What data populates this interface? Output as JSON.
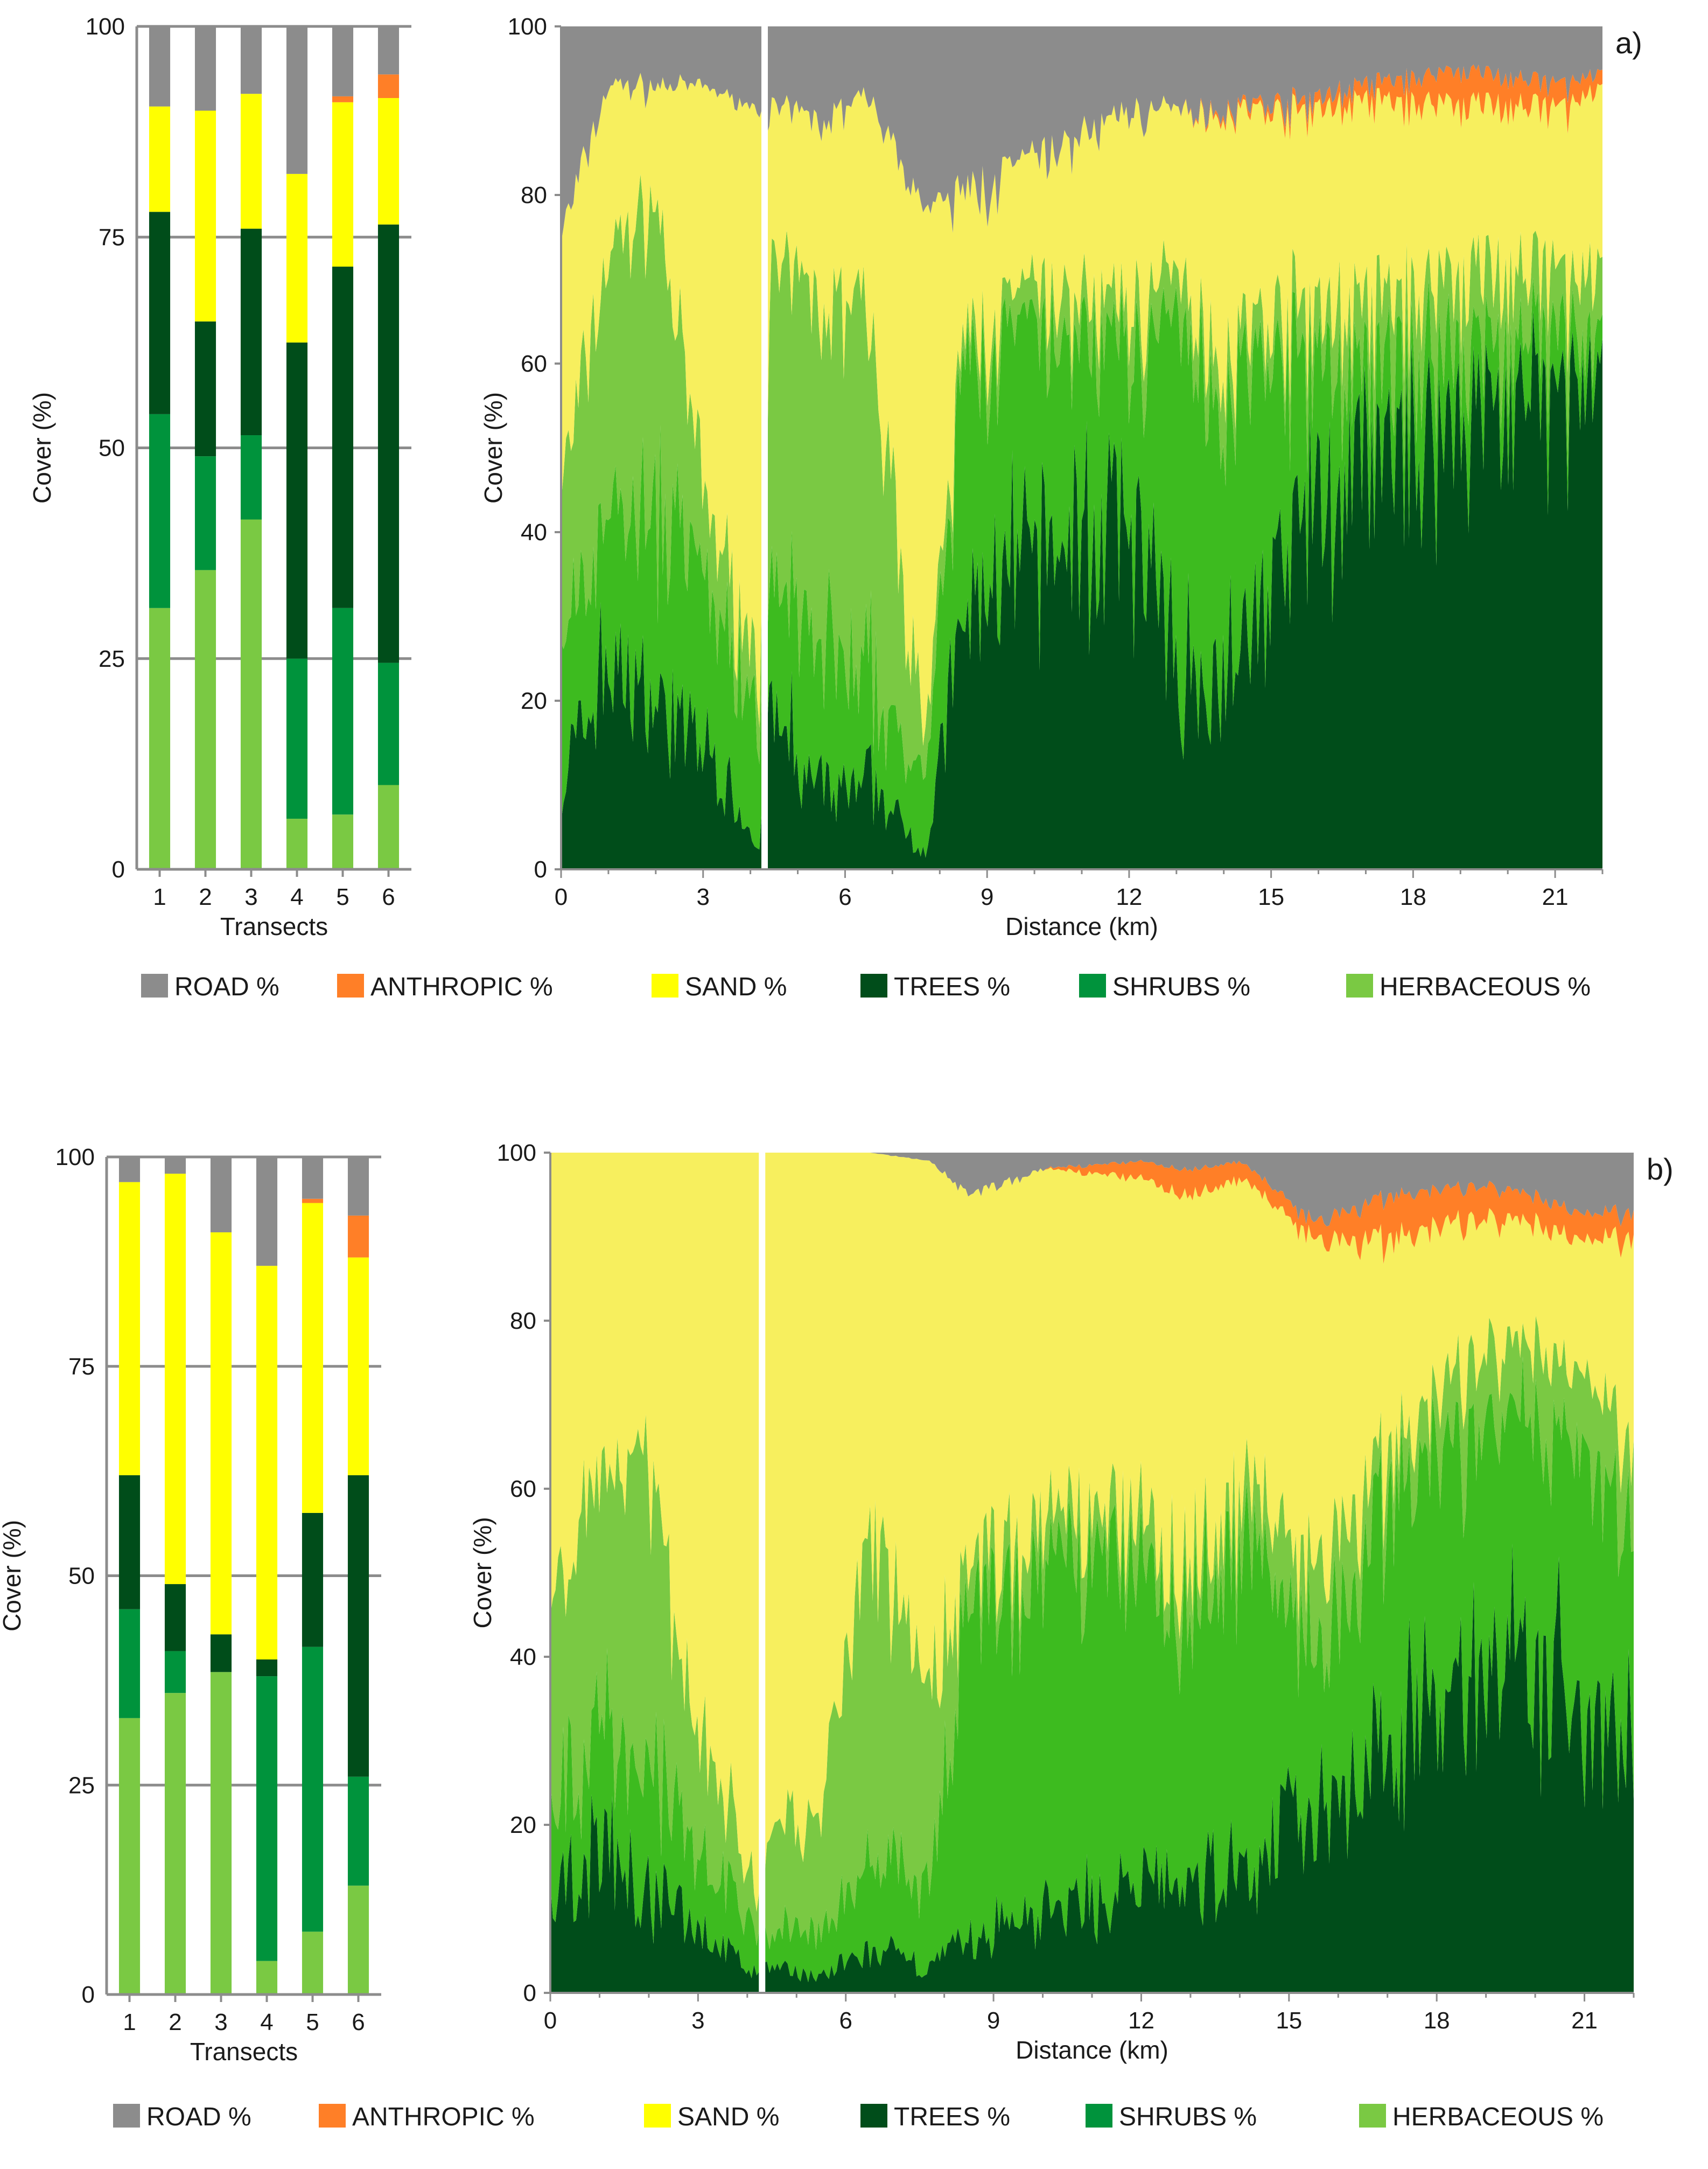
{
  "colors": {
    "road": "#8c8c8c",
    "anthropic": "#ff7f27",
    "sand": "#ffff00",
    "sand_area": "#f7ef5e",
    "trees": "#004d1a",
    "shrubs": "#00933c",
    "shrubs_area": "#3dbb1f",
    "herbaceous": "#7ac943",
    "grid": "#8c8c8c"
  },
  "legend": [
    {
      "key": "road",
      "label": "ROAD %"
    },
    {
      "key": "anthropic",
      "label": "ANTHROPIC %"
    },
    {
      "key": "sand",
      "label": "SAND %"
    },
    {
      "key": "trees",
      "label": "TREES %"
    },
    {
      "key": "shrubs",
      "label": "SHRUBS %"
    },
    {
      "key": "herbaceous",
      "label": "HERBACEOUS %"
    }
  ],
  "chart_data": [
    {
      "id": "a-bars",
      "panel": "a",
      "type": "bar",
      "stacked": true,
      "xlabel": "Transects",
      "ylabel": "Cover (%)",
      "ylim": [
        0,
        100
      ],
      "yticks": [
        0,
        25,
        50,
        75,
        100
      ],
      "categories": [
        "1",
        "2",
        "3",
        "4",
        "5",
        "6"
      ],
      "series": [
        {
          "name": "HERBACEOUS %",
          "key": "herbaceous",
          "values": [
            31,
            35.5,
            41.5,
            6,
            6.5,
            10
          ]
        },
        {
          "name": "SHRUBS %",
          "key": "shrubs",
          "values": [
            23,
            13.5,
            10,
            19,
            24.5,
            14.5
          ]
        },
        {
          "name": "TREES %",
          "key": "trees",
          "values": [
            24,
            16,
            24.5,
            37.5,
            40.5,
            52
          ]
        },
        {
          "name": "SAND %",
          "key": "sand",
          "values": [
            12.5,
            25,
            16,
            20,
            19.5,
            15
          ]
        },
        {
          "name": "ANTHROPIC %",
          "key": "anthropic",
          "values": [
            0,
            0,
            0,
            0,
            0.7,
            2.8
          ]
        },
        {
          "name": "ROAD %",
          "key": "road",
          "values": [
            9.5,
            10,
            8,
            17.5,
            8.3,
            5.7
          ]
        }
      ]
    },
    {
      "id": "a-area",
      "panel": "a",
      "label": "a)",
      "type": "area",
      "stacked": true,
      "xlabel": "Distance (km)",
      "ylabel": "Cover (%)",
      "xlim": [
        0,
        22
      ],
      "ylim": [
        0,
        100
      ],
      "xticks": [
        0,
        3,
        6,
        9,
        12,
        15,
        18,
        21
      ],
      "yticks": [
        0,
        20,
        40,
        60,
        80,
        100
      ],
      "gap_km": 4.3,
      "series": [
        {
          "name": "TREES %",
          "key": "trees",
          "x": [
            0,
            1,
            2,
            3,
            4.2,
            4.4,
            5.5,
            6.5,
            7.7,
            8.5,
            10,
            12,
            13,
            14,
            15.5,
            17,
            19,
            21,
            22
          ],
          "values": [
            10,
            25,
            20,
            15,
            3,
            20,
            8,
            10,
            2,
            30,
            38,
            42,
            25,
            22,
            40,
            48,
            55,
            56,
            55
          ]
        },
        {
          "name": "SHRUBS %",
          "key": "shrubs_area",
          "x": [
            0,
            1,
            2,
            3,
            4.2,
            4.4,
            5.5,
            6.5,
            7.7,
            8.5,
            10,
            12,
            13,
            14,
            15.5,
            17,
            19,
            21,
            22
          ],
          "values": [
            15,
            20,
            20,
            20,
            15,
            15,
            20,
            12,
            8,
            30,
            25,
            20,
            40,
            35,
            22,
            10,
            8,
            6,
            5
          ]
        },
        {
          "name": "HERBACEOUS %",
          "key": "herbaceous",
          "x": [
            0,
            1,
            2,
            3,
            4.2,
            4.4,
            5.5,
            6.5,
            7.7,
            8.5,
            10,
            12,
            13,
            14,
            15.5,
            17,
            19,
            21,
            22
          ],
          "values": [
            20,
            28,
            40,
            10,
            5,
            35,
            40,
            45,
            5,
            3,
            5,
            5,
            5,
            5,
            5,
            8,
            8,
            8,
            8
          ]
        },
        {
          "name": "SAND %",
          "key": "sand_area",
          "x": [
            0,
            1,
            2,
            3,
            4.2,
            4.4,
            5.5,
            6.5,
            7.7,
            8.5,
            10,
            12,
            13,
            14,
            15.5,
            17,
            19,
            21,
            22
          ],
          "values": [
            30,
            20,
            13,
            48,
            67,
            20,
            21,
            25,
            63,
            17,
            16,
            23,
            20,
            28,
            23,
            25,
            20,
            20,
            24
          ]
        },
        {
          "name": "ANTHROPIC %",
          "key": "anthropic",
          "x": [
            0,
            1,
            2,
            3,
            4.2,
            4.4,
            5.5,
            6.5,
            7.7,
            8.5,
            10,
            12,
            13,
            14,
            15.5,
            17,
            19,
            21,
            22
          ],
          "values": [
            0,
            0,
            0,
            0,
            0,
            0,
            0,
            0,
            0,
            0,
            0,
            0,
            0,
            0.5,
            1,
            2,
            4,
            3,
            2
          ]
        },
        {
          "name": "ROAD %",
          "key": "road",
          "x": [
            0,
            1,
            2,
            3,
            4.2,
            4.4,
            5.5,
            6.5,
            7.7,
            8.5,
            10,
            12,
            13,
            14,
            15.5,
            17,
            19,
            21,
            22
          ],
          "values": [
            25,
            7,
            7,
            7,
            10,
            10,
            11,
            8,
            22,
            20,
            16,
            10,
            10,
            9.5,
            9,
            7,
            5,
            7,
            6
          ]
        }
      ]
    },
    {
      "id": "b-bars",
      "panel": "b",
      "type": "bar",
      "stacked": true,
      "xlabel": "Transects",
      "ylabel": "Cover (%)",
      "ylim": [
        0,
        100
      ],
      "yticks": [
        0,
        25,
        50,
        75,
        100
      ],
      "categories": [
        "1",
        "2",
        "3",
        "4",
        "5",
        "6"
      ],
      "series": [
        {
          "name": "HERBACEOUS %",
          "key": "herbaceous",
          "values": [
            33,
            36,
            38.5,
            4,
            7.5,
            13
          ]
        },
        {
          "name": "SHRUBS %",
          "key": "shrubs",
          "values": [
            13,
            5,
            0,
            34,
            34,
            13
          ]
        },
        {
          "name": "TREES %",
          "key": "trees",
          "values": [
            16,
            8,
            4.5,
            2,
            16,
            36
          ]
        },
        {
          "name": "SAND %",
          "key": "sand",
          "values": [
            35,
            49,
            48,
            47,
            37,
            26
          ]
        },
        {
          "name": "ANTHROPIC %",
          "key": "anthropic",
          "values": [
            0,
            0,
            0,
            0,
            0.5,
            5
          ]
        },
        {
          "name": "ROAD %",
          "key": "road",
          "values": [
            3,
            2,
            9,
            13,
            5,
            7
          ]
        }
      ]
    },
    {
      "id": "b-area",
      "panel": "b",
      "label": "b)",
      "type": "area",
      "stacked": true,
      "xlabel": "Distance (km)",
      "ylabel": "Cover (%)",
      "xlim": [
        0,
        22
      ],
      "ylim": [
        0,
        100
      ],
      "xticks": [
        0,
        3,
        6,
        9,
        12,
        15,
        18,
        21
      ],
      "yticks": [
        0,
        20,
        40,
        60,
        80,
        100
      ],
      "gap_km": 4.3,
      "series": [
        {
          "name": "TREES %",
          "key": "trees",
          "x": [
            0,
            1,
            2,
            3,
            4.2,
            4.4,
            5.5,
            6.5,
            7.7,
            8.5,
            10,
            12,
            13,
            14,
            15.5,
            17,
            19,
            21,
            22
          ],
          "values": [
            10,
            18,
            12,
            8,
            2,
            3,
            2,
            5,
            3,
            6,
            10,
            12,
            12,
            15,
            22,
            30,
            40,
            35,
            30
          ]
        },
        {
          "name": "SHRUBS %",
          "key": "shrubs_area",
          "x": [
            0,
            1,
            2,
            3,
            4.2,
            4.4,
            5.5,
            6.5,
            7.7,
            8.5,
            10,
            12,
            13,
            14,
            15.5,
            17,
            19,
            21,
            22
          ],
          "values": [
            10,
            15,
            15,
            10,
            5,
            5,
            5,
            10,
            12,
            40,
            40,
            40,
            35,
            40,
            20,
            30,
            28,
            30,
            25
          ]
        },
        {
          "name": "HERBACEOUS %",
          "key": "herbaceous",
          "x": [
            0,
            1,
            2,
            3,
            4.2,
            4.4,
            5.5,
            6.5,
            7.7,
            8.5,
            10,
            12,
            13,
            14,
            15.5,
            17,
            19,
            21,
            22
          ],
          "values": [
            25,
            30,
            35,
            15,
            5,
            10,
            15,
            40,
            20,
            5,
            5,
            5,
            5,
            5,
            10,
            5,
            8,
            10,
            10
          ]
        },
        {
          "name": "SAND %",
          "key": "sand_area",
          "x": [
            0,
            1,
            2,
            3,
            4.2,
            4.4,
            5.5,
            6.5,
            7.7,
            8.5,
            10,
            12,
            13,
            14,
            15.5,
            17,
            19,
            21,
            22
          ],
          "values": [
            55,
            37,
            38,
            67,
            88,
            82,
            78,
            45,
            64,
            44,
            43,
            40,
            43,
            37,
            38,
            25,
            16,
            15,
            25
          ]
        },
        {
          "name": "ANTHROPIC %",
          "key": "anthropic",
          "x": [
            0,
            1,
            2,
            3,
            4.2,
            4.4,
            5.5,
            6.5,
            7.7,
            8.5,
            10,
            12,
            13,
            14,
            15.5,
            17,
            19,
            21,
            22
          ],
          "values": [
            0,
            0,
            0,
            0,
            0,
            0,
            0,
            0,
            0,
            0,
            0,
            2,
            3,
            2,
            2,
            5,
            4,
            3,
            3
          ]
        },
        {
          "name": "ROAD %",
          "key": "road",
          "x": [
            0,
            1,
            2,
            3,
            4.2,
            4.4,
            5.5,
            6.5,
            7.7,
            8.5,
            10,
            12,
            13,
            14,
            15.5,
            17,
            19,
            21,
            22
          ],
          "values": [
            0,
            0,
            0,
            0,
            0,
            0,
            0,
            0,
            1,
            5,
            2,
            1,
            2,
            1,
            8,
            5,
            4,
            7,
            7
          ]
        }
      ]
    }
  ]
}
